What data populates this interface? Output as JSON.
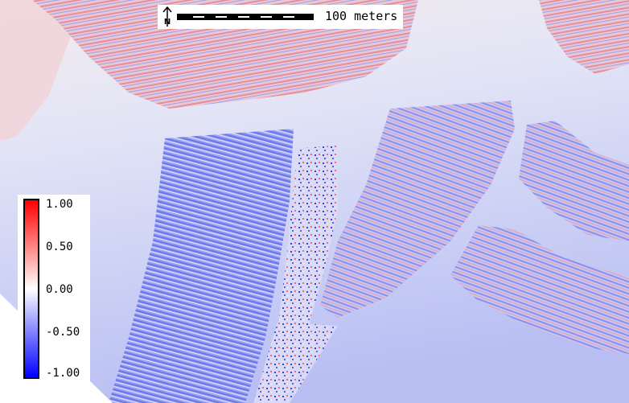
{
  "map": {
    "north_arrow_letter": "N",
    "scale_label": "100 meters",
    "colorbar": {
      "colors": {
        "high": "#ff0000",
        "mid": "#ffffff",
        "low": "#0000ff"
      },
      "ticks": [
        "1.00",
        "0.50",
        "0.00",
        "-0.50",
        "-1.00"
      ]
    },
    "palette": {
      "background_light": "#f4f0f0",
      "background_blue": "#b8bff4",
      "field_red": "#f0a0a0",
      "field_blue": "#7a86f0"
    }
  }
}
